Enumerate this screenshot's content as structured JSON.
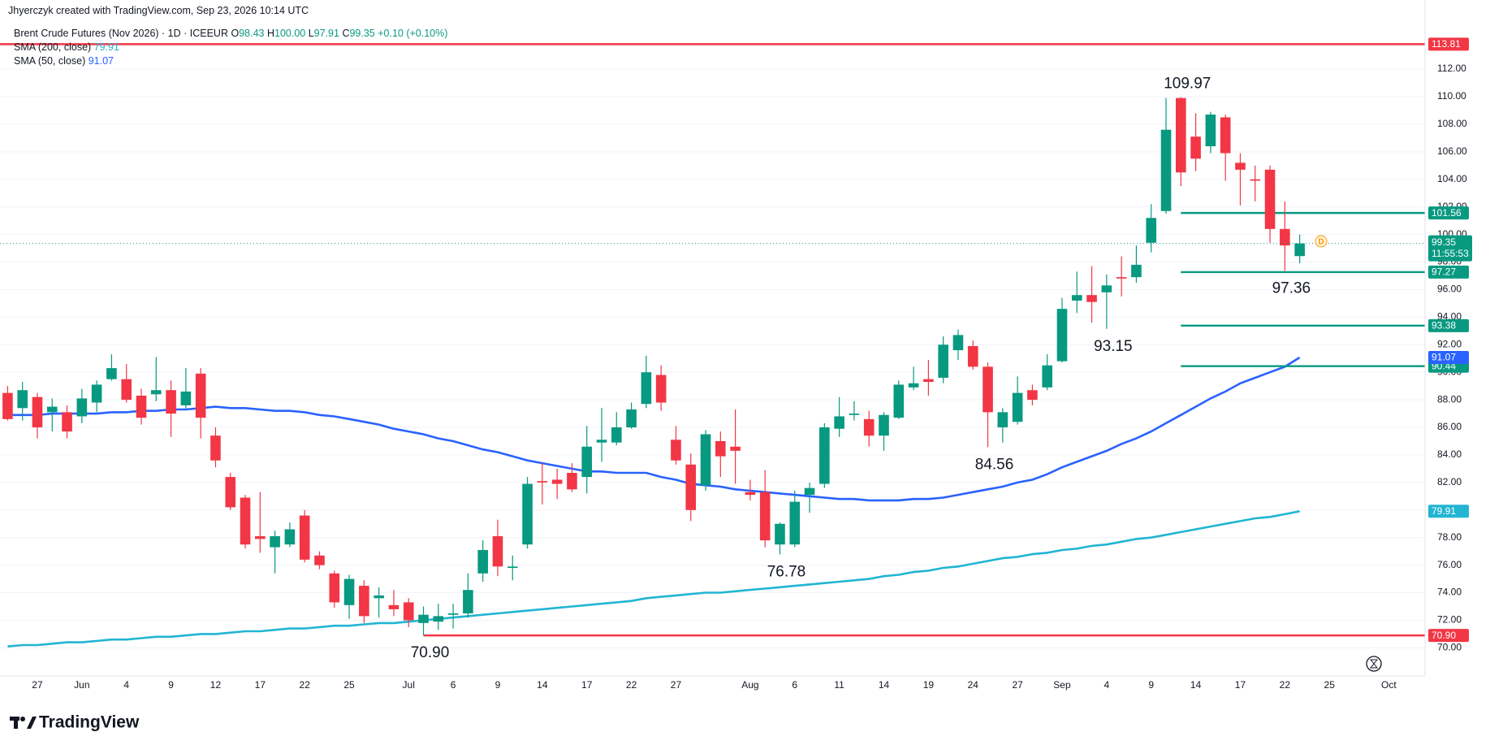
{
  "header": {
    "credit": "Jhyerczyk created with TradingView.com, Sep 23, 2026 10:14 UTC"
  },
  "legend": {
    "symbol": "Brent Crude Futures (Nov 2026) · 1D · ICEEUR",
    "ohlc": [
      {
        "key": "O",
        "value": "98.43"
      },
      {
        "key": "H",
        "value": "100.00"
      },
      {
        "key": "L",
        "value": "97.91"
      },
      {
        "key": "C",
        "value": "99.35"
      }
    ],
    "change": "+0.10 (+0.10%)"
  },
  "brand": "TradingView",
  "chart_data": {
    "type": "candlestick",
    "up_color": "#089981",
    "down_color": "#f23645",
    "categories": [
      null,
      null,
      "27",
      null,
      null,
      "Jun",
      null,
      null,
      "4",
      null,
      null,
      "9",
      null,
      null,
      "12",
      null,
      null,
      "17",
      null,
      null,
      "22",
      null,
      null,
      "25",
      null,
      null,
      null,
      "Jul",
      null,
      null,
      "6",
      null,
      null,
      "9",
      null,
      null,
      "14",
      null,
      null,
      "17",
      null,
      null,
      "22",
      null,
      null,
      "27",
      null,
      null,
      null,
      null,
      "Aug",
      null,
      null,
      "6",
      null,
      null,
      "11",
      null,
      null,
      "14",
      null,
      null,
      "19",
      null,
      null,
      "24",
      null,
      null,
      "27",
      null,
      null,
      "Sep",
      null,
      null,
      "4",
      null,
      null,
      "9",
      null,
      null,
      "14",
      null,
      null,
      "17",
      null,
      null,
      "22",
      null
    ],
    "future_categories": [
      null,
      "25",
      null,
      null,
      null,
      "Oct"
    ],
    "candles": [
      {
        "o": 88.5,
        "h": 89,
        "l": 86.5,
        "c": 86.6
      },
      {
        "o": 87.4,
        "h": 89.3,
        "l": 86.5,
        "c": 88.7
      },
      {
        "o": 88.2,
        "h": 88.5,
        "l": 85.2,
        "c": 86
      },
      {
        "o": 87.1,
        "h": 88.1,
        "l": 85.7,
        "c": 87.5
      },
      {
        "o": 87.1,
        "h": 87.6,
        "l": 85.2,
        "c": 85.7
      },
      {
        "o": 86.8,
        "h": 88.8,
        "l": 86.3,
        "c": 88.1
      },
      {
        "o": 87.8,
        "h": 89.4,
        "l": 87.1,
        "c": 89.1
      },
      {
        "o": 89.5,
        "h": 91.3,
        "l": 89.4,
        "c": 90.3
      },
      {
        "o": 89.5,
        "h": 90.6,
        "l": 87.8,
        "c": 88
      },
      {
        "o": 88.3,
        "h": 88.8,
        "l": 86.2,
        "c": 86.7
      },
      {
        "o": 88.4,
        "h": 91.1,
        "l": 87.9,
        "c": 88.7
      },
      {
        "o": 88.7,
        "h": 89.4,
        "l": 85.3,
        "c": 87
      },
      {
        "o": 87.6,
        "h": 90.3,
        "l": 87.3,
        "c": 88.6
      },
      {
        "o": 89.9,
        "h": 90.3,
        "l": 85.2,
        "c": 86.7
      },
      {
        "o": 85.4,
        "h": 86,
        "l": 83.1,
        "c": 83.6
      },
      {
        "o": 82.4,
        "h": 82.7,
        "l": 80,
        "c": 80.2
      },
      {
        "o": 80.9,
        "h": 81.1,
        "l": 77.2,
        "c": 77.5
      },
      {
        "o": 78.1,
        "h": 81.3,
        "l": 76.9,
        "c": 77.9
      },
      {
        "o": 77.3,
        "h": 78.5,
        "l": 75.4,
        "c": 78.1
      },
      {
        "o": 77.5,
        "h": 79.1,
        "l": 77.3,
        "c": 78.6
      },
      {
        "o": 79.6,
        "h": 80,
        "l": 76.2,
        "c": 76.4
      },
      {
        "o": 76.7,
        "h": 77,
        "l": 75.7,
        "c": 76
      },
      {
        "o": 75.4,
        "h": 75.6,
        "l": 72.9,
        "c": 73.3
      },
      {
        "o": 73.1,
        "h": 75.3,
        "l": 72.1,
        "c": 75
      },
      {
        "o": 74.5,
        "h": 74.9,
        "l": 71.8,
        "c": 72.3
      },
      {
        "o": 73.6,
        "h": 74.4,
        "l": 72.2,
        "c": 73.8
      },
      {
        "o": 73.1,
        "h": 74.2,
        "l": 72.3,
        "c": 72.8
      },
      {
        "o": 73.3,
        "h": 73.6,
        "l": 71.5,
        "c": 72
      },
      {
        "o": 71.8,
        "h": 73,
        "l": 70.9,
        "c": 72.4
      },
      {
        "o": 71.9,
        "h": 73.2,
        "l": 71.3,
        "c": 72.3
      },
      {
        "o": 72.4,
        "h": 73.2,
        "l": 71.4,
        "c": 72.5
      },
      {
        "o": 72.5,
        "h": 75.4,
        "l": 72.2,
        "c": 74.2
      },
      {
        "o": 75.4,
        "h": 77.8,
        "l": 74.8,
        "c": 77.1
      },
      {
        "o": 78.1,
        "h": 79.3,
        "l": 75.2,
        "c": 75.9
      },
      {
        "o": 75.8,
        "h": 76.7,
        "l": 74.9,
        "c": 75.9
      },
      {
        "o": 77.5,
        "h": 82.4,
        "l": 77.2,
        "c": 81.9
      },
      {
        "o": 82.1,
        "h": 83.4,
        "l": 80.4,
        "c": 82
      },
      {
        "o": 82.2,
        "h": 83,
        "l": 80.8,
        "c": 81.9
      },
      {
        "o": 82.7,
        "h": 83.4,
        "l": 81.3,
        "c": 81.5
      },
      {
        "o": 82.4,
        "h": 86.1,
        "l": 81.2,
        "c": 84.6
      },
      {
        "o": 84.9,
        "h": 87.4,
        "l": 83.5,
        "c": 85.1
      },
      {
        "o": 84.9,
        "h": 87.1,
        "l": 84.7,
        "c": 86
      },
      {
        "o": 86,
        "h": 87.8,
        "l": 85.9,
        "c": 87.3
      },
      {
        "o": 87.7,
        "h": 91.2,
        "l": 87.4,
        "c": 90
      },
      {
        "o": 89.8,
        "h": 90.5,
        "l": 87.2,
        "c": 87.8
      },
      {
        "o": 85.1,
        "h": 86.1,
        "l": 83.3,
        "c": 83.6
      },
      {
        "o": 83.3,
        "h": 84.1,
        "l": 79.2,
        "c": 80
      },
      {
        "o": 81.8,
        "h": 85.8,
        "l": 81.4,
        "c": 85.5
      },
      {
        "o": 85,
        "h": 85.7,
        "l": 82.4,
        "c": 83.9
      },
      {
        "o": 84.6,
        "h": 87.3,
        "l": 81.9,
        "c": 84.3
      },
      {
        "o": 81.3,
        "h": 82.2,
        "l": 80.7,
        "c": 81.1
      },
      {
        "o": 81.3,
        "h": 82.9,
        "l": 77.3,
        "c": 77.8
      },
      {
        "o": 77.5,
        "h": 79.1,
        "l": 76.78,
        "c": 79
      },
      {
        "o": 77.5,
        "h": 81.4,
        "l": 77.3,
        "c": 80.6
      },
      {
        "o": 81.1,
        "h": 82,
        "l": 79.8,
        "c": 81.6
      },
      {
        "o": 81.9,
        "h": 86.3,
        "l": 81.6,
        "c": 86
      },
      {
        "o": 85.9,
        "h": 88.2,
        "l": 85.3,
        "c": 86.8
      },
      {
        "o": 86.9,
        "h": 87.9,
        "l": 86.5,
        "c": 87
      },
      {
        "o": 86.6,
        "h": 87.2,
        "l": 84.6,
        "c": 85.4
      },
      {
        "o": 85.4,
        "h": 87.1,
        "l": 84.3,
        "c": 86.9
      },
      {
        "o": 86.7,
        "h": 89.4,
        "l": 86.6,
        "c": 89.1
      },
      {
        "o": 88.9,
        "h": 90.4,
        "l": 88.7,
        "c": 89.2
      },
      {
        "o": 89.5,
        "h": 90.9,
        "l": 88.3,
        "c": 89.3
      },
      {
        "o": 89.6,
        "h": 92.6,
        "l": 89.2,
        "c": 92
      },
      {
        "o": 91.6,
        "h": 93.1,
        "l": 90.9,
        "c": 92.7
      },
      {
        "o": 91.9,
        "h": 92.3,
        "l": 90.2,
        "c": 90.4
      },
      {
        "o": 90.4,
        "h": 90.7,
        "l": 84.56,
        "c": 87.1
      },
      {
        "o": 86,
        "h": 87.4,
        "l": 84.9,
        "c": 87.1
      },
      {
        "o": 86.4,
        "h": 89.7,
        "l": 86.2,
        "c": 88.5
      },
      {
        "o": 88.7,
        "h": 89.1,
        "l": 87.6,
        "c": 88
      },
      {
        "o": 88.9,
        "h": 91.3,
        "l": 88.7,
        "c": 90.5
      },
      {
        "o": 90.8,
        "h": 95.4,
        "l": 90.7,
        "c": 94.6
      },
      {
        "o": 95.2,
        "h": 97.3,
        "l": 94.3,
        "c": 95.6
      },
      {
        "o": 95.6,
        "h": 97.7,
        "l": 93.6,
        "c": 95.1
      },
      {
        "o": 95.8,
        "h": 97.1,
        "l": 93.15,
        "c": 96.3
      },
      {
        "o": 96.9,
        "h": 98.4,
        "l": 95.5,
        "c": 96.8
      },
      {
        "o": 96.9,
        "h": 99.2,
        "l": 96.5,
        "c": 97.8
      },
      {
        "o": 99.4,
        "h": 102.2,
        "l": 98.7,
        "c": 101.2
      },
      {
        "o": 101.7,
        "h": 109.9,
        "l": 101.5,
        "c": 107.6
      },
      {
        "o": 109.9,
        "h": 109.97,
        "l": 103.5,
        "c": 104.5
      },
      {
        "o": 107.1,
        "h": 108.8,
        "l": 104.6,
        "c": 105.5
      },
      {
        "o": 106.4,
        "h": 108.9,
        "l": 105.9,
        "c": 108.7
      },
      {
        "o": 108.5,
        "h": 108.7,
        "l": 103.9,
        "c": 105.9
      },
      {
        "o": 105.2,
        "h": 105.9,
        "l": 102.1,
        "c": 104.7
      },
      {
        "o": 104,
        "h": 105,
        "l": 102.4,
        "c": 103.9
      },
      {
        "o": 104.7,
        "h": 105,
        "l": 99.4,
        "c": 100.4
      },
      {
        "o": 100.4,
        "h": 102.4,
        "l": 97.36,
        "c": 99.2
      },
      {
        "o": 98.43,
        "h": 100,
        "l": 97.91,
        "c": 99.35
      }
    ],
    "series": [
      {
        "name": "SMA (200, close)",
        "color": "#22b5d2",
        "values": [
          70.1,
          70.2,
          70.2,
          70.3,
          70.4,
          70.4,
          70.5,
          70.6,
          70.6,
          70.7,
          70.8,
          70.8,
          70.9,
          71.0,
          71.0,
          71.1,
          71.2,
          71.2,
          71.3,
          71.4,
          71.4,
          71.5,
          71.6,
          71.6,
          71.7,
          71.8,
          71.8,
          71.9,
          72.0,
          72.1,
          72.2,
          72.3,
          72.4,
          72.5,
          72.6,
          72.7,
          72.8,
          72.9,
          73.0,
          73.1,
          73.2,
          73.3,
          73.4,
          73.6,
          73.7,
          73.8,
          73.9,
          74.0,
          74.0,
          74.1,
          74.2,
          74.3,
          74.4,
          74.5,
          74.6,
          74.7,
          74.8,
          74.9,
          75.0,
          75.2,
          75.3,
          75.5,
          75.6,
          75.8,
          75.9,
          76.1,
          76.3,
          76.5,
          76.6,
          76.8,
          76.9,
          77.1,
          77.2,
          77.4,
          77.5,
          77.7,
          77.9,
          78.0,
          78.2,
          78.4,
          78.6,
          78.8,
          79.0,
          79.2,
          79.4,
          79.5,
          79.7,
          79.91
        ]
      },
      {
        "name": "SMA (50, close)",
        "color": "#2962ff",
        "values": [
          86.9,
          86.9,
          86.9,
          87.0,
          87.0,
          87.0,
          87.0,
          87.1,
          87.1,
          87.2,
          87.2,
          87.3,
          87.3,
          87.4,
          87.5,
          87.4,
          87.4,
          87.3,
          87.2,
          87.2,
          87.1,
          86.9,
          86.8,
          86.6,
          86.4,
          86.2,
          85.9,
          85.7,
          85.5,
          85.2,
          85.0,
          84.7,
          84.4,
          84.2,
          83.9,
          83.6,
          83.4,
          83.2,
          83.0,
          82.8,
          82.8,
          82.7,
          82.7,
          82.7,
          82.4,
          82.2,
          81.9,
          81.8,
          81.7,
          81.5,
          81.4,
          81.3,
          81.2,
          81.1,
          81.0,
          80.9,
          80.8,
          80.8,
          80.7,
          80.7,
          80.7,
          80.8,
          80.8,
          80.9,
          81.1,
          81.3,
          81.5,
          81.7,
          82.0,
          82.2,
          82.6,
          83.1,
          83.5,
          83.9,
          84.3,
          84.8,
          85.2,
          85.7,
          86.3,
          86.9,
          87.5,
          88.1,
          88.6,
          89.2,
          89.6,
          90.0,
          90.4,
          91.07
        ]
      }
    ],
    "levels": [
      {
        "value": 113.81,
        "color": "#f23645"
      },
      {
        "value": 101.56,
        "color": "#089981"
      },
      {
        "value": 97.27,
        "color": "#089981"
      },
      {
        "value": 93.38,
        "color": "#089981"
      },
      {
        "value": 90.44,
        "color": "#089981"
      },
      {
        "value": 70.9,
        "label": "70.90",
        "color": "#f23645"
      }
    ],
    "annotations": [
      "109.97",
      "97.36",
      "93.15",
      "84.56",
      "76.78",
      "70.90"
    ],
    "countdown": "11:55:53",
    "ylim": [
      68,
      115.2
    ],
    "yticks": [
      {
        "value": 70,
        "label": "70.00"
      },
      {
        "value": 72,
        "label": "72.00"
      },
      {
        "value": 74,
        "label": "74.00"
      },
      {
        "value": 76,
        "label": "76.00"
      },
      {
        "value": 78,
        "label": "78.00"
      },
      {
        "value": 80,
        "label": "80.00"
      },
      {
        "value": 82,
        "label": "82.00"
      },
      {
        "value": 84,
        "label": "84.00"
      },
      {
        "value": 86,
        "label": "86.00"
      },
      {
        "value": 88,
        "label": "88.00"
      },
      {
        "value": 90,
        "label": "90.00"
      },
      {
        "value": 92,
        "label": "92.00"
      },
      {
        "value": 94,
        "label": "94.00"
      },
      {
        "value": 96,
        "label": "96.00"
      },
      {
        "value": 98,
        "label": "98.00"
      },
      {
        "value": 100,
        "label": "100.00"
      },
      {
        "value": 102,
        "label": "102.00"
      },
      {
        "value": 104,
        "label": "104.00"
      },
      {
        "value": 106,
        "label": "106.00"
      },
      {
        "value": 108,
        "label": "108.00"
      },
      {
        "value": 110,
        "label": "110.00"
      },
      {
        "value": 112,
        "label": "112.00"
      }
    ],
    "grid": true
  }
}
